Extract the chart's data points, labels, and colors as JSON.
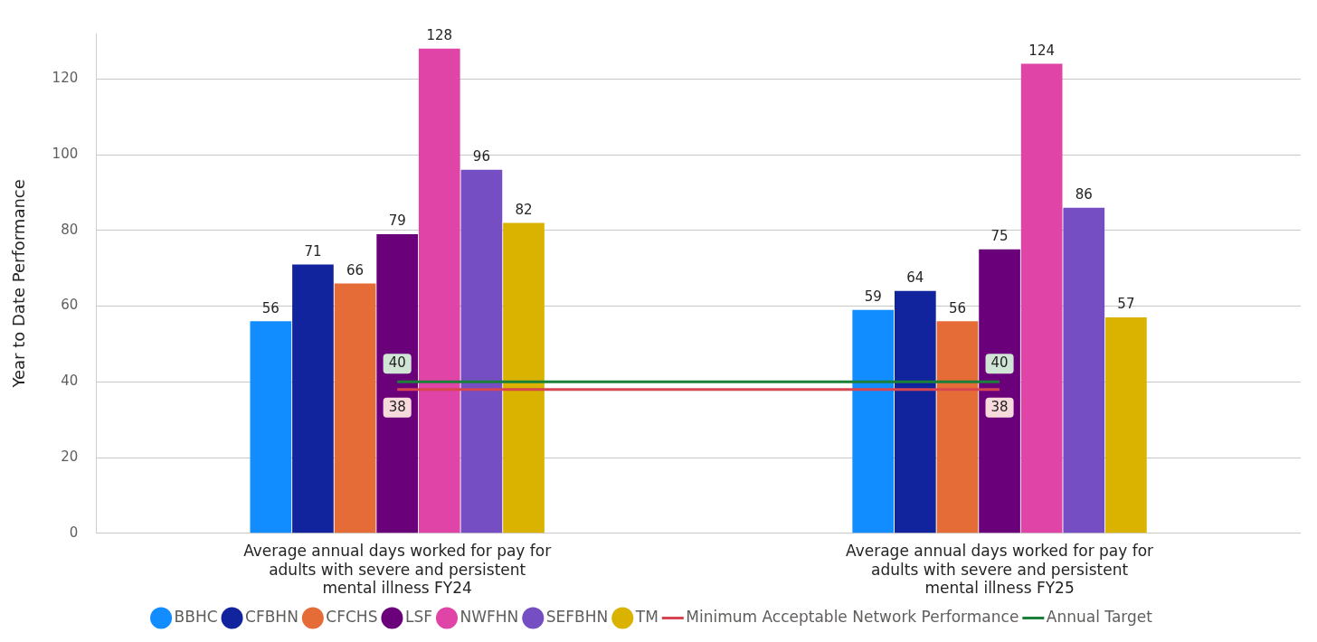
{
  "chart_data": {
    "type": "bar",
    "ylabel": "Year to Date Performance",
    "categories": [
      "Average annual days worked for pay for adults with severe and persistent mental illness FY24",
      "Average annual days worked for pay for adults with severe and persistent mental illness FY25"
    ],
    "series": [
      {
        "name": "BBHC",
        "color": "#118dff",
        "values": [
          56,
          59
        ]
      },
      {
        "name": "CFBHN",
        "color": "#12239e",
        "values": [
          71,
          64
        ]
      },
      {
        "name": "CFCHS",
        "color": "#e66c37",
        "values": [
          66,
          56
        ]
      },
      {
        "name": "LSF",
        "color": "#6b007b",
        "values": [
          79,
          75
        ]
      },
      {
        "name": "NWFHN",
        "color": "#e044a7",
        "values": [
          128,
          124
        ]
      },
      {
        "name": "SEFBHN",
        "color": "#744ec2",
        "values": [
          96,
          86
        ]
      },
      {
        "name": "TM",
        "color": "#d9b300",
        "values": [
          82,
          57
        ]
      },
      {
        "name": "Minimum Acceptable Network Performance",
        "type": "line",
        "color": "#d64550",
        "values": [
          38,
          38
        ]
      },
      {
        "name": "Annual Target",
        "type": "line",
        "color": "#1a7f37",
        "values": [
          40,
          40
        ]
      }
    ],
    "ylim": [
      0,
      132
    ],
    "yticks": [
      0,
      20,
      40,
      60,
      80,
      100,
      120
    ],
    "grid": "y",
    "legend": "bottom",
    "data_labels": true
  }
}
